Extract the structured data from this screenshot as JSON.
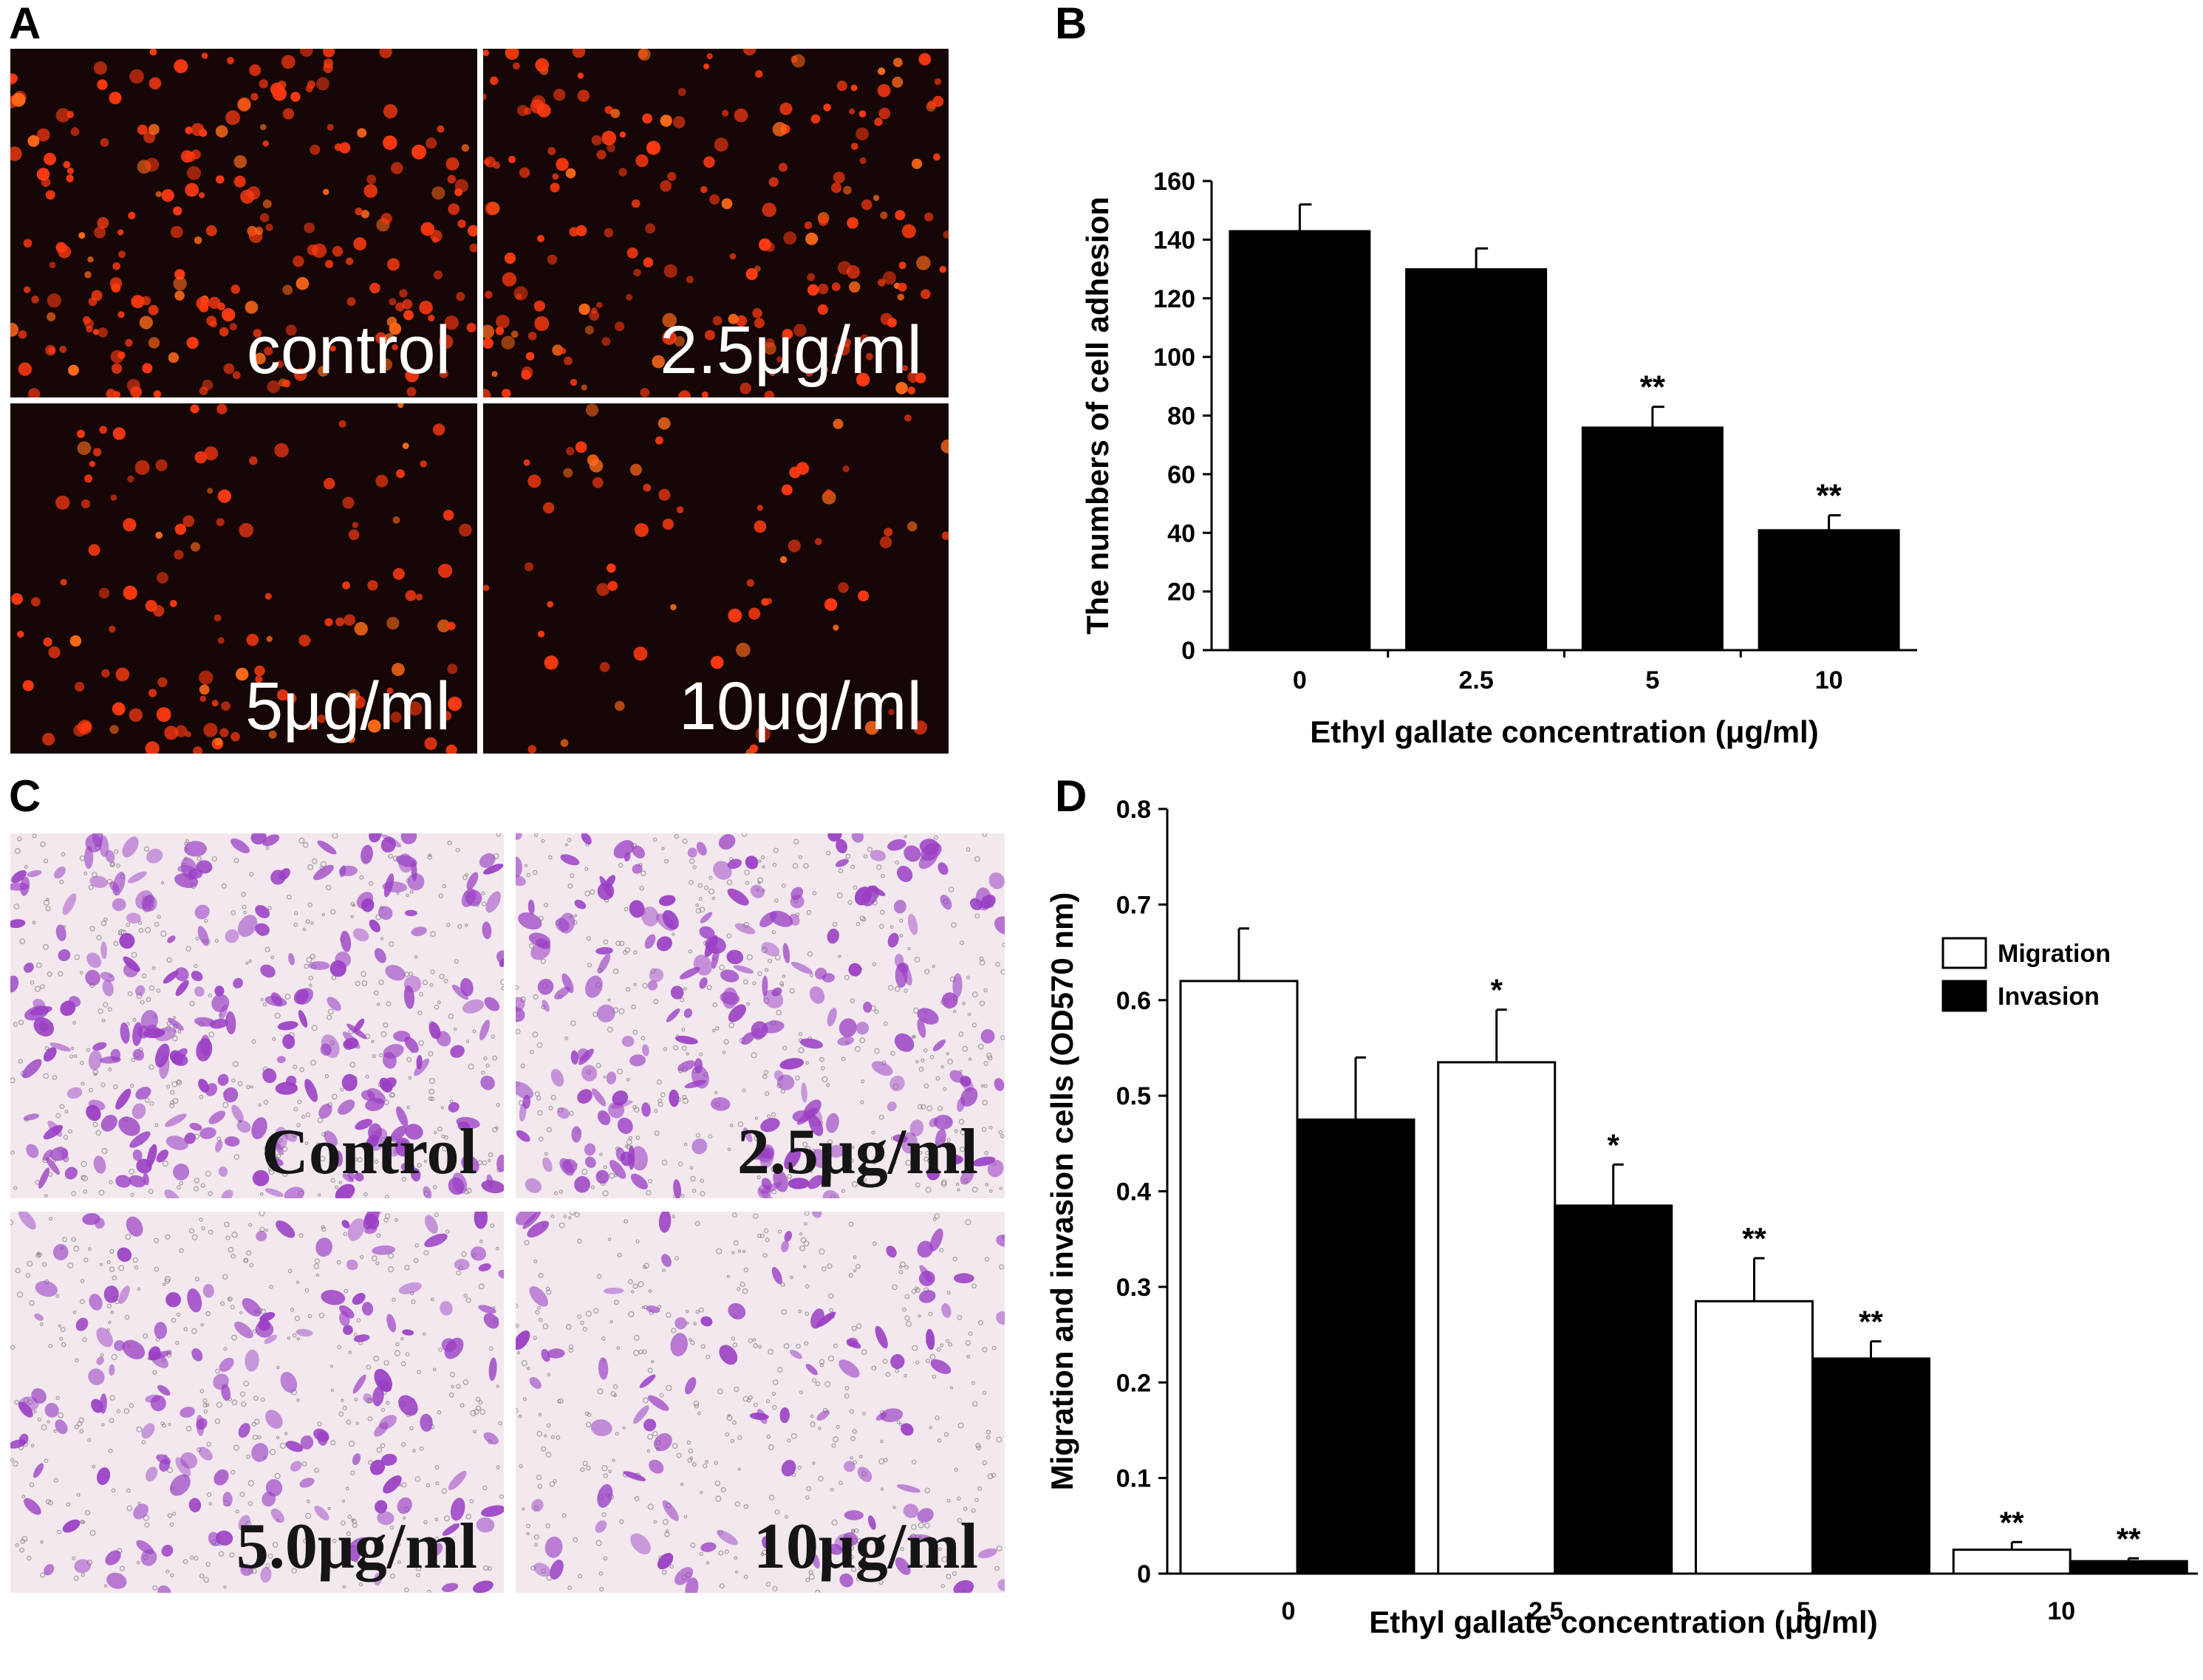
{
  "panels": {
    "a": {
      "letter": "A",
      "tiles": [
        {
          "label": "control",
          "density": 1.0
        },
        {
          "label": "2.5μg/ml",
          "density": 0.9
        },
        {
          "label": "5μg/ml",
          "density": 0.55
        },
        {
          "label": "10μg/ml",
          "density": 0.3
        }
      ]
    },
    "b": {
      "letter": "B"
    },
    "c": {
      "letter": "C",
      "tiles": [
        {
          "label": "Control",
          "density": 1.0
        },
        {
          "label": "2.5μg/ml",
          "density": 0.85
        },
        {
          "label": "5.0μg/ml",
          "density": 0.6
        },
        {
          "label": "10μg/ml",
          "density": 0.35
        }
      ]
    },
    "d": {
      "letter": "D"
    }
  },
  "colors": {
    "fluor_background": "#160605",
    "fluor_cell": "#ff3a12",
    "stain_background": "#f2e8ee",
    "stain_cell": "#9a3ec4",
    "bar_dark": "#000000",
    "bar_light": "#ffffff"
  },
  "chart_data": [
    {
      "type": "bar",
      "panel": "B",
      "categories": [
        "0",
        "2.5",
        "5",
        "10"
      ],
      "values": [
        143,
        130,
        76,
        41
      ],
      "errors": [
        9,
        7,
        7,
        5
      ],
      "annotations": [
        "",
        "",
        "**",
        "**"
      ],
      "xlabel": "Ethyl gallate concentration (μg/ml)",
      "ylabel": "The numbers of cell adhesion",
      "ylim": [
        0,
        160
      ],
      "yticks": [
        0,
        20,
        40,
        60,
        80,
        100,
        120,
        140,
        160
      ],
      "grid": false
    },
    {
      "type": "bar",
      "panel": "D",
      "categories": [
        "0",
        "2.5",
        "5",
        "10"
      ],
      "series": [
        {
          "name": "Migration",
          "fill": "#ffffff",
          "values": [
            0.62,
            0.535,
            0.285,
            0.025
          ],
          "errors": [
            0.055,
            0.055,
            0.045,
            0.008
          ],
          "annotations": [
            "",
            "*",
            "**",
            "**"
          ]
        },
        {
          "name": "Invasion",
          "fill": "#000000",
          "values": [
            0.475,
            0.385,
            0.225,
            0.013
          ],
          "errors": [
            0.065,
            0.043,
            0.018,
            0.003
          ],
          "annotations": [
            "",
            "*",
            "**",
            "**"
          ]
        }
      ],
      "xlabel": "Ethyl gallate concentration (μg/ml)",
      "ylabel": "Migration and invasion cells (OD570 nm)",
      "ylim": [
        0,
        0.8
      ],
      "yticks": [
        "0",
        "0.1",
        "0.2",
        "0.3",
        "0.4",
        "0.5",
        "0.6",
        "0.7",
        "0.8"
      ],
      "legend_position": "top-right",
      "grid": false
    }
  ]
}
